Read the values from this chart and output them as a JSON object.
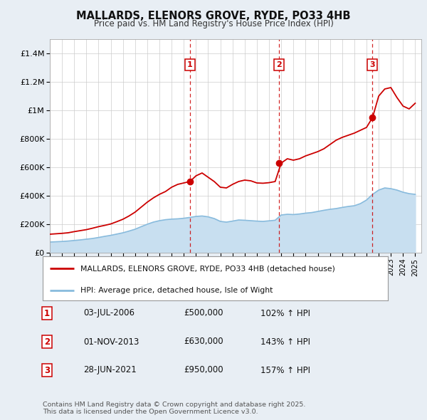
{
  "title": "MALLARDS, ELENORS GROVE, RYDE, PO33 4HB",
  "subtitle": "Price paid vs. HM Land Registry's House Price Index (HPI)",
  "background_color": "#e8eef4",
  "plot_background": "#ffffff",
  "ylim": [
    0,
    1500000
  ],
  "xlim_start": 1995.0,
  "xlim_end": 2025.5,
  "legend1_label": "MALLARDS, ELENORS GROVE, RYDE, PO33 4HB (detached house)",
  "legend2_label": "HPI: Average price, detached house, Isle of Wight",
  "footer": "Contains HM Land Registry data © Crown copyright and database right 2025.\nThis data is licensed under the Open Government Licence v3.0.",
  "sale_color": "#cc0000",
  "hpi_color": "#88bbdd",
  "hpi_fill_color": "#c8dff0",
  "transactions": [
    {
      "num": 1,
      "date_str": "03-JUL-2006",
      "price": 500000,
      "pct": "102%",
      "x": 2006.5
    },
    {
      "num": 2,
      "date_str": "01-NOV-2013",
      "price": 630000,
      "pct": "143%",
      "x": 2013.83
    },
    {
      "num": 3,
      "date_str": "28-JUN-2021",
      "price": 950000,
      "pct": "157%",
      "x": 2021.49
    }
  ],
  "hpi_data": [
    [
      1995.0,
      75000
    ],
    [
      1995.5,
      77000
    ],
    [
      1996.0,
      79000
    ],
    [
      1996.5,
      82000
    ],
    [
      1997.0,
      86000
    ],
    [
      1997.5,
      90000
    ],
    [
      1998.0,
      95000
    ],
    [
      1998.5,
      100000
    ],
    [
      1999.0,
      107000
    ],
    [
      1999.5,
      115000
    ],
    [
      2000.0,
      122000
    ],
    [
      2000.5,
      131000
    ],
    [
      2001.0,
      140000
    ],
    [
      2001.5,
      152000
    ],
    [
      2002.0,
      165000
    ],
    [
      2002.5,
      183000
    ],
    [
      2003.0,
      200000
    ],
    [
      2003.5,
      215000
    ],
    [
      2004.0,
      225000
    ],
    [
      2004.5,
      232000
    ],
    [
      2005.0,
      236000
    ],
    [
      2005.5,
      238000
    ],
    [
      2006.0,
      242000
    ],
    [
      2006.5,
      248000
    ],
    [
      2007.0,
      255000
    ],
    [
      2007.5,
      258000
    ],
    [
      2008.0,
      252000
    ],
    [
      2008.5,
      240000
    ],
    [
      2009.0,
      220000
    ],
    [
      2009.5,
      215000
    ],
    [
      2010.0,
      222000
    ],
    [
      2010.5,
      230000
    ],
    [
      2011.0,
      228000
    ],
    [
      2011.5,
      225000
    ],
    [
      2012.0,
      222000
    ],
    [
      2012.5,
      220000
    ],
    [
      2013.0,
      224000
    ],
    [
      2013.5,
      228000
    ],
    [
      2014.0,
      265000
    ],
    [
      2014.5,
      270000
    ],
    [
      2015.0,
      268000
    ],
    [
      2015.5,
      272000
    ],
    [
      2016.0,
      278000
    ],
    [
      2016.5,
      282000
    ],
    [
      2017.0,
      290000
    ],
    [
      2017.5,
      298000
    ],
    [
      2018.0,
      305000
    ],
    [
      2018.5,
      310000
    ],
    [
      2019.0,
      318000
    ],
    [
      2019.5,
      325000
    ],
    [
      2020.0,
      330000
    ],
    [
      2020.5,
      345000
    ],
    [
      2021.0,
      370000
    ],
    [
      2021.5,
      410000
    ],
    [
      2022.0,
      440000
    ],
    [
      2022.5,
      455000
    ],
    [
      2023.0,
      450000
    ],
    [
      2023.5,
      440000
    ],
    [
      2024.0,
      425000
    ],
    [
      2024.5,
      415000
    ],
    [
      2025.0,
      410000
    ]
  ],
  "price_data": [
    [
      1995.0,
      130000
    ],
    [
      1995.5,
      133000
    ],
    [
      1996.0,
      136000
    ],
    [
      1996.5,
      140000
    ],
    [
      1997.0,
      148000
    ],
    [
      1997.5,
      155000
    ],
    [
      1998.0,
      162000
    ],
    [
      1998.5,
      172000
    ],
    [
      1999.0,
      183000
    ],
    [
      1999.5,
      192000
    ],
    [
      2000.0,
      202000
    ],
    [
      2000.5,
      218000
    ],
    [
      2001.0,
      235000
    ],
    [
      2001.5,
      258000
    ],
    [
      2002.0,
      285000
    ],
    [
      2002.5,
      320000
    ],
    [
      2003.0,
      355000
    ],
    [
      2003.5,
      385000
    ],
    [
      2004.0,
      410000
    ],
    [
      2004.5,
      430000
    ],
    [
      2005.0,
      460000
    ],
    [
      2005.5,
      480000
    ],
    [
      2006.0,
      490000
    ],
    [
      2006.5,
      500000
    ],
    [
      2007.0,
      540000
    ],
    [
      2007.5,
      560000
    ],
    [
      2008.0,
      530000
    ],
    [
      2008.5,
      500000
    ],
    [
      2009.0,
      460000
    ],
    [
      2009.5,
      455000
    ],
    [
      2010.0,
      480000
    ],
    [
      2010.5,
      500000
    ],
    [
      2011.0,
      510000
    ],
    [
      2011.5,
      505000
    ],
    [
      2012.0,
      490000
    ],
    [
      2012.5,
      488000
    ],
    [
      2013.0,
      492000
    ],
    [
      2013.5,
      500000
    ],
    [
      2014.0,
      630000
    ],
    [
      2014.5,
      660000
    ],
    [
      2015.0,
      650000
    ],
    [
      2015.5,
      660000
    ],
    [
      2016.0,
      680000
    ],
    [
      2016.5,
      695000
    ],
    [
      2017.0,
      710000
    ],
    [
      2017.5,
      730000
    ],
    [
      2018.0,
      760000
    ],
    [
      2018.5,
      790000
    ],
    [
      2019.0,
      810000
    ],
    [
      2019.5,
      825000
    ],
    [
      2020.0,
      840000
    ],
    [
      2020.5,
      860000
    ],
    [
      2021.0,
      880000
    ],
    [
      2021.5,
      950000
    ],
    [
      2022.0,
      1100000
    ],
    [
      2022.5,
      1150000
    ],
    [
      2023.0,
      1160000
    ],
    [
      2023.5,
      1090000
    ],
    [
      2024.0,
      1030000
    ],
    [
      2024.5,
      1010000
    ],
    [
      2025.0,
      1050000
    ]
  ]
}
